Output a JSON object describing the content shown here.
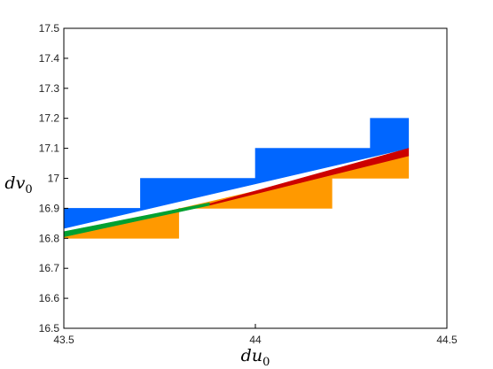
{
  "chart_data": {
    "type": "area",
    "title": "",
    "xlabel": {
      "base": "du",
      "sub": "0"
    },
    "ylabel": {
      "base": "dv",
      "sub": "0"
    },
    "xlim": [
      43.5,
      44.5
    ],
    "ylim": [
      16.5,
      17.5
    ],
    "xticks": [
      "43.5",
      "44",
      "44.5"
    ],
    "yticks": [
      "16.5",
      "16.6",
      "16.7",
      "16.8",
      "16.9",
      "17",
      "17.1",
      "17.2",
      "17.3",
      "17.4",
      "17.5"
    ],
    "grid": false,
    "legend": "none",
    "series": [
      {
        "color": "#0066ff",
        "polygon": [
          [
            43.5,
            16.9
          ],
          [
            43.7,
            16.9
          ],
          [
            43.7,
            17.0
          ],
          [
            44.0,
            17.0
          ],
          [
            44.0,
            17.1
          ],
          [
            44.3,
            17.1
          ],
          [
            44.3,
            17.2
          ],
          [
            44.4,
            17.2
          ],
          [
            44.4,
            17.1
          ],
          [
            43.5,
            16.833
          ]
        ]
      },
      {
        "color": "#ff9900",
        "polygon": [
          [
            43.5,
            16.8
          ],
          [
            43.8,
            16.8
          ],
          [
            43.8,
            16.9
          ],
          [
            44.2,
            16.9
          ],
          [
            44.2,
            17.0
          ],
          [
            44.4,
            17.0
          ],
          [
            44.4,
            17.075
          ],
          [
            43.5,
            16.81
          ]
        ]
      },
      {
        "color": "#cc0000",
        "polygon": [
          [
            43.88,
            16.915
          ],
          [
            44.4,
            17.1
          ],
          [
            44.4,
            17.075
          ],
          [
            43.88,
            16.91
          ]
        ]
      },
      {
        "color": "#00a030",
        "polygon": [
          [
            43.5,
            16.822
          ],
          [
            43.88,
            16.918
          ],
          [
            43.88,
            16.91
          ],
          [
            43.5,
            16.805
          ]
        ]
      }
    ]
  }
}
